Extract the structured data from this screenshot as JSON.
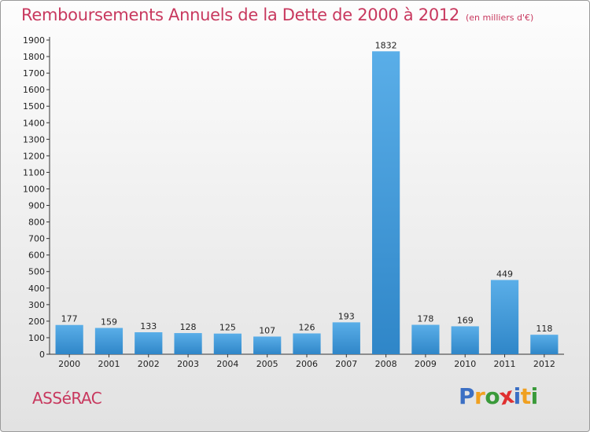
{
  "chart_data": {
    "type": "bar",
    "title": "Remboursements Annuels de la Dette de 2000 à 2012",
    "subtitle": "(en milliers d'€)",
    "categories": [
      "2000",
      "2001",
      "2002",
      "2003",
      "2004",
      "2005",
      "2006",
      "2007",
      "2008",
      "2009",
      "2010",
      "2011",
      "2012"
    ],
    "values": [
      177,
      159,
      133,
      128,
      125,
      107,
      126,
      193,
      1832,
      178,
      169,
      449,
      118
    ],
    "ylim": [
      0,
      1900
    ],
    "ytick_step": 100,
    "grid": false,
    "bar_color_light": "#5aaee8",
    "bar_color_dark": "#2f86c8"
  },
  "commune": "ASSéRAC",
  "logo": {
    "letters": [
      "P",
      "r",
      "o",
      "x",
      "i",
      "t",
      "i"
    ],
    "colors": [
      "#3b6fc4",
      "#f0a020",
      "#3a9a3a",
      "#e03030",
      "#3b6fc4",
      "#f0a020",
      "#3a9a3a"
    ]
  }
}
